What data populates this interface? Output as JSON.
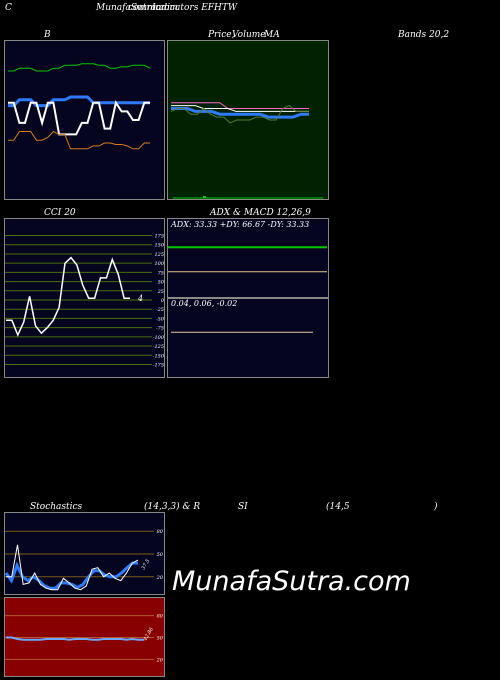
{
  "header": {
    "c": "C",
    "site": "MunafaSutra.com",
    "overlap": "common",
    "indicators": "Indicators EFHTW"
  },
  "titles": {
    "b": "B",
    "price": "Price,",
    "volume": "Volume",
    "ma": "MA",
    "bands": "Bands 20,2",
    "cci": "CCI 20",
    "adx": "ADX  & MACD 12,26,9",
    "stoch": "Stochastics",
    "stoch_params": "(14,3,3) & R",
    "si": "SI",
    "rsi_params": "(14,5",
    "rsi_close": ")"
  },
  "watermark": "MunafaSutra.com",
  "colors": {
    "navy": "#05051f",
    "green_panel": "#002200",
    "red_panel": "#880000",
    "blue": "#2f7bff",
    "white": "#ffffff",
    "green": "#00c800",
    "orange": "#d77a1e",
    "grid_green": "#4a6e0a"
  },
  "chart_data": [
    {
      "id": "bollinger",
      "type": "line",
      "title": "B",
      "series": [
        {
          "values": [
            84,
            84,
            86,
            86,
            86,
            84,
            84,
            84,
            86,
            86,
            88,
            88,
            88,
            89,
            89,
            89,
            88,
            88,
            86,
            86,
            87,
            87,
            88,
            88,
            88,
            86
          ]
        },
        {
          "values": [
            60,
            60,
            64,
            64,
            64,
            60,
            60,
            60,
            64,
            64,
            64,
            66,
            66,
            66,
            66,
            62,
            62,
            62,
            62,
            62,
            62,
            62,
            62,
            62,
            62,
            62
          ]
        },
        {
          "values": [
            62,
            62,
            48,
            48,
            62,
            62,
            48,
            62,
            62,
            40,
            40,
            40,
            40,
            48,
            48,
            62,
            62,
            44,
            44,
            62,
            56,
            56,
            50,
            50,
            62,
            62
          ]
        },
        {
          "values": [
            36,
            36,
            42,
            42,
            42,
            36,
            36,
            38,
            42,
            40,
            40,
            30,
            30,
            30,
            30,
            32,
            32,
            34,
            34,
            33,
            33,
            32,
            30,
            30,
            34,
            34
          ]
        }
      ],
      "ylim": [
        0,
        100
      ]
    },
    {
      "id": "price_ma",
      "type": "line",
      "title": "Price, Volume MA",
      "series": [
        {
          "values": [
            62,
            62,
            62,
            62,
            62,
            62,
            62,
            58,
            58,
            58,
            58,
            58,
            58,
            58,
            58,
            58,
            58,
            58
          ]
        },
        {
          "values": [
            60,
            60,
            60,
            60,
            58,
            58,
            58,
            58,
            56,
            56,
            56,
            56,
            56,
            56,
            56,
            56,
            56,
            56
          ]
        },
        {
          "values": [
            58,
            58,
            58,
            56,
            56,
            56,
            54,
            54,
            54,
            54,
            54,
            54,
            52,
            52,
            52,
            52,
            54,
            54
          ]
        },
        {
          "values": [
            56,
            58,
            58,
            54,
            54,
            58,
            54,
            52,
            52,
            48,
            50,
            50,
            50,
            52,
            52,
            50,
            50,
            58,
            60,
            56,
            56,
            56
          ]
        }
      ],
      "ylim": [
        0,
        100
      ]
    },
    {
      "id": "cci",
      "type": "line",
      "title": "CCI 20",
      "y_ticks": [
        175,
        150,
        125,
        100,
        75,
        50,
        25,
        0,
        -25,
        -50,
        -75,
        -100,
        -125,
        -150,
        -175
      ],
      "y_tick_labels": [
        "175",
        "150",
        "125",
        "100",
        "75",
        "50",
        "25",
        "0",
        "-25",
        "-50",
        "-75",
        "-100",
        "-125",
        "-150",
        "-175"
      ],
      "values": [
        -55,
        -55,
        -95,
        -60,
        10,
        -70,
        -90,
        -75,
        -55,
        -20,
        100,
        115,
        95,
        40,
        5,
        5,
        60,
        60,
        110,
        70,
        5,
        5
      ],
      "annotation": "4",
      "ylim": [
        -190,
        190
      ]
    },
    {
      "id": "adx",
      "type": "line",
      "title": "ADX & MACD 12,26,9",
      "readout": "ADX: 33.33  +DY: 66.67  -DY: 33.33",
      "series": [
        {
          "values": [
            66.67,
            66.67
          ]
        },
        {
          "values": [
            33.33,
            33.33
          ]
        }
      ],
      "ylim": [
        0,
        100
      ]
    },
    {
      "id": "macd",
      "type": "line",
      "readout": "0.04,  0.06,  -0.02",
      "series": [
        {
          "values": [
            0.04,
            0.04
          ]
        }
      ],
      "ylim": [
        -0.2,
        0.2
      ]
    },
    {
      "id": "stochastics",
      "type": "line",
      "title": "Stochastics",
      "y_ticks": [
        80,
        50,
        20
      ],
      "y_tick_labels": [
        "80",
        "50",
        "20"
      ],
      "value_label": "37.5",
      "series": [
        {
          "values": [
            20,
            20,
            62,
            10,
            12,
            25,
            10,
            5,
            3,
            3,
            18,
            12,
            5,
            3,
            8,
            30,
            32,
            20,
            25,
            18,
            15,
            25,
            38,
            42
          ]
        },
        {
          "values": [
            25,
            15,
            35,
            20,
            15,
            20,
            15,
            8,
            5,
            5,
            12,
            12,
            10,
            6,
            10,
            20,
            28,
            28,
            22,
            20,
            20,
            25,
            32,
            38,
            38
          ]
        }
      ],
      "ylim": [
        0,
        100
      ]
    },
    {
      "id": "rsi",
      "type": "line",
      "title": "RSI",
      "y_ticks": [
        80,
        50,
        20
      ],
      "y_tick_labels": [
        "80",
        "50",
        "20"
      ],
      "value_label": "42.86",
      "series": [
        {
          "values": [
            50,
            50,
            48,
            47,
            47,
            47,
            47,
            48,
            48,
            48,
            48,
            47,
            48,
            48,
            48,
            47,
            47,
            48,
            48,
            48,
            48,
            47,
            48,
            47,
            47
          ]
        }
      ],
      "ylim": [
        0,
        100
      ]
    }
  ]
}
